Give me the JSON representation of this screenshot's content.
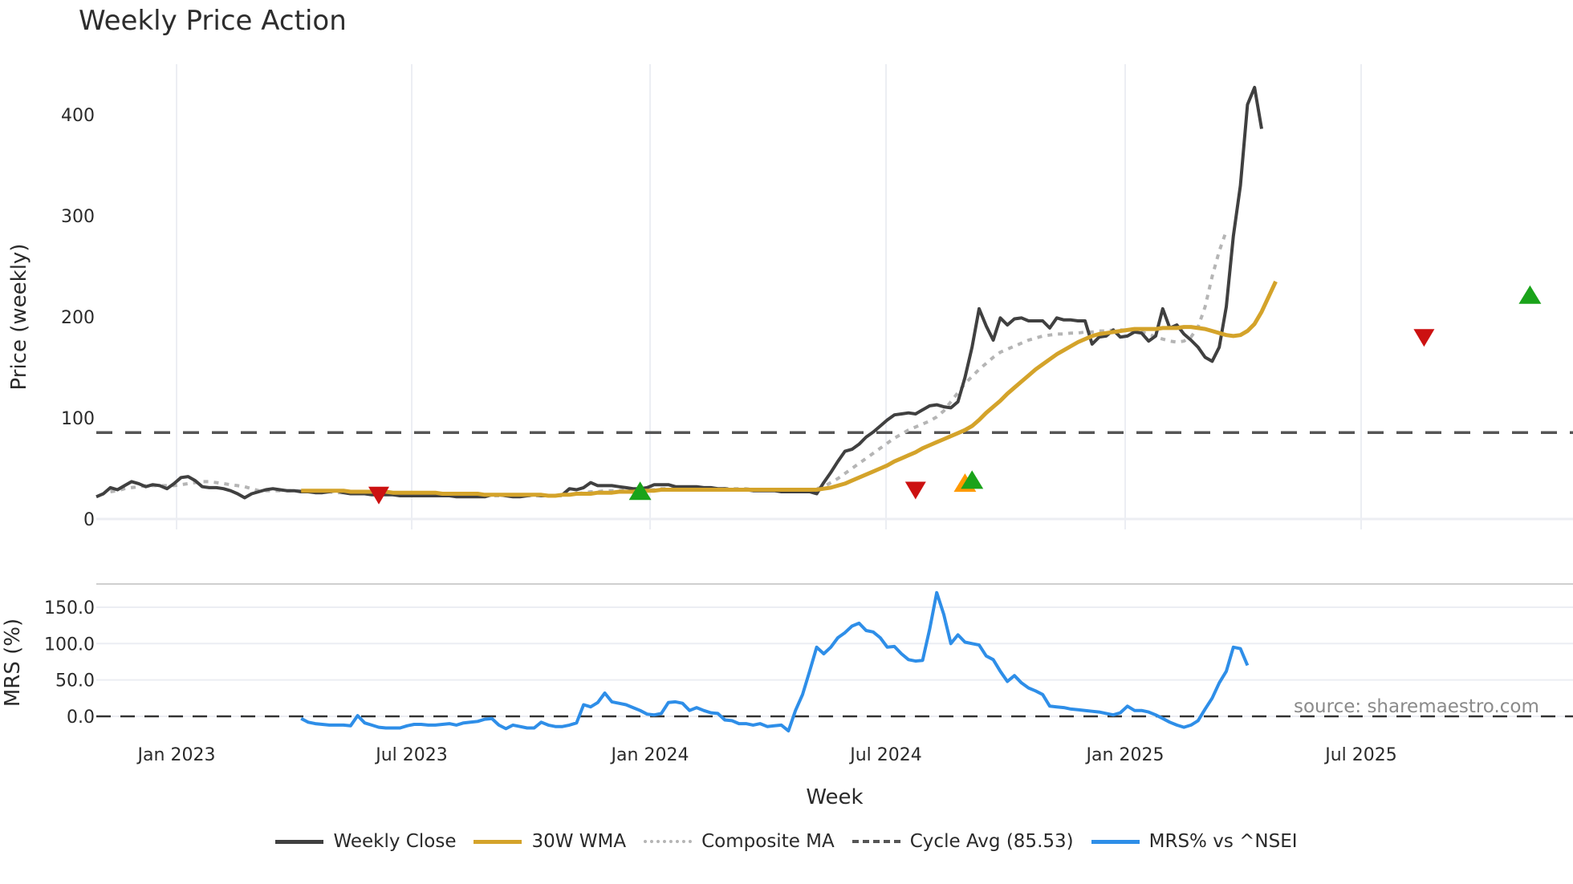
{
  "title": "Weekly Price Action",
  "watermark": "source: sharemaestro.com",
  "colors": {
    "weekly_close": "#404040",
    "wma30": "#d4a32a",
    "composite_ma": "#b5b5b5",
    "cycle_avg": "#555555",
    "mrs": "#2e8ee8",
    "buy_marker": "#1aa31a",
    "sell_marker": "#cc1111",
    "orange_marker": "#ff9900",
    "grid": "#eceef3"
  },
  "legend": [
    {
      "key": "weekly_close",
      "label": "Weekly Close",
      "style": "solid"
    },
    {
      "key": "wma30",
      "label": "30W WMA",
      "style": "solid"
    },
    {
      "key": "composite_ma",
      "label": "Composite MA",
      "style": "dotted"
    },
    {
      "key": "cycle_avg",
      "label": "Cycle Avg (85.53)",
      "style": "dashed"
    },
    {
      "key": "mrs",
      "label": "MRS% vs ^NSEI",
      "style": "solid"
    }
  ],
  "chart_data": [
    {
      "type": "line",
      "title": "Weekly Price Action",
      "xlabel": "Week",
      "ylabel": "Price (weekly)",
      "ylim": [
        0,
        440
      ],
      "yticks": [
        0,
        100,
        200,
        300,
        400
      ],
      "xticks": [
        "Jan 2023",
        "Jul 2023",
        "Jan 2024",
        "Jul 2024",
        "Jan 2025",
        "Jul 2025"
      ],
      "grid": true,
      "x_start": "2022-10-31",
      "x_step_weeks": 1,
      "reference_lines": [
        {
          "name": "Cycle Avg (85.53)",
          "y": 85.53,
          "style": "dashed"
        }
      ],
      "series": [
        {
          "name": "Weekly Close",
          "start_index": 0,
          "values": [
            22,
            25,
            31,
            29,
            33,
            37,
            35,
            32,
            34,
            33,
            30,
            35,
            41,
            42,
            38,
            32,
            31,
            31,
            30,
            28,
            25,
            21,
            25,
            27,
            29,
            30,
            29,
            28,
            28,
            27,
            27,
            26,
            26,
            27,
            28,
            26,
            25,
            25,
            25,
            24,
            24,
            24,
            24,
            23,
            23,
            23,
            23,
            23,
            23,
            23,
            23,
            22,
            22,
            22,
            22,
            22,
            24,
            24,
            23,
            22,
            22,
            23,
            24,
            23,
            23,
            23,
            24,
            30,
            29,
            31,
            36,
            33,
            33,
            33,
            32,
            31,
            30,
            30,
            31,
            34,
            34,
            34,
            32,
            32,
            32,
            32,
            31,
            31,
            30,
            30,
            29,
            29,
            29,
            28,
            28,
            28,
            28,
            27,
            27,
            27,
            27,
            27,
            25,
            36,
            46,
            57,
            67,
            69,
            74,
            81,
            86,
            92,
            98,
            103,
            104,
            105,
            104,
            108,
            112,
            113,
            111,
            110,
            116,
            140,
            170,
            208,
            191,
            177,
            199,
            192,
            198,
            199,
            196,
            196,
            196,
            189,
            199,
            197,
            197,
            196,
            196,
            173,
            180,
            181,
            187,
            180,
            181,
            185,
            184,
            176,
            181,
            208,
            189,
            192,
            183,
            177,
            170,
            160,
            156,
            170,
            210,
            280,
            330,
            410,
            427,
            386
          ]
        },
        {
          "name": "30W WMA",
          "start_index": 29,
          "values": [
            28,
            28,
            28,
            28,
            28,
            28,
            28,
            27,
            27,
            27,
            27,
            27,
            27,
            26,
            26,
            26,
            26,
            26,
            26,
            26,
            25,
            25,
            25,
            25,
            25,
            25,
            24,
            24,
            24,
            24,
            24,
            24,
            24,
            24,
            24,
            23,
            23,
            24,
            24,
            25,
            25,
            25,
            26,
            26,
            26,
            27,
            27,
            27,
            28,
            28,
            28,
            29,
            29,
            29,
            29,
            29,
            29,
            29,
            29,
            29,
            29,
            29,
            29,
            29,
            29,
            29,
            29,
            29,
            29,
            29,
            29,
            29,
            29,
            29,
            30,
            31,
            33,
            35,
            38,
            41,
            44,
            47,
            50,
            53,
            57,
            60,
            63,
            66,
            70,
            73,
            76,
            79,
            82,
            85,
            88,
            92,
            98,
            105,
            111,
            117,
            124,
            130,
            136,
            142,
            148,
            153,
            158,
            163,
            167,
            171,
            175,
            178,
            181,
            183,
            184,
            185,
            186,
            187,
            188,
            188,
            188,
            188,
            189,
            189,
            189,
            190,
            190,
            189,
            188,
            186,
            184,
            182,
            181,
            182,
            186,
            193,
            205,
            220,
            235
          ]
        },
        {
          "name": "Composite MA",
          "start_index": 2,
          "values": [
            27,
            28,
            30,
            31,
            32,
            33,
            33,
            33,
            33,
            33,
            34,
            35,
            36,
            37,
            37,
            36,
            35,
            34,
            33,
            32,
            30,
            28,
            28,
            28,
            28,
            28,
            28,
            28,
            28,
            27,
            27,
            27,
            26,
            26,
            26,
            26,
            25,
            25,
            25,
            25,
            24,
            24,
            24,
            24,
            24,
            24,
            23,
            23,
            23,
            23,
            23,
            23,
            23,
            23,
            23,
            23,
            23,
            23,
            23,
            23,
            23,
            23,
            23,
            23,
            23,
            24,
            25,
            26,
            27,
            27,
            28,
            28,
            28,
            29,
            29,
            29,
            29,
            29,
            30,
            30,
            30,
            30,
            30,
            30,
            30,
            30,
            30,
            30,
            30,
            30,
            30,
            29,
            29,
            29,
            29,
            29,
            29,
            29,
            29,
            29,
            30,
            32,
            36,
            40,
            45,
            50,
            55,
            60,
            65,
            70,
            75,
            80,
            84,
            88,
            91,
            94,
            97,
            101,
            107,
            116,
            125,
            134,
            141,
            148,
            154,
            160,
            165,
            168,
            171,
            174,
            177,
            179,
            181,
            182,
            183,
            183,
            184,
            184,
            185,
            185,
            186,
            186,
            187,
            187,
            187,
            186,
            185,
            183,
            180,
            178,
            176,
            175,
            176,
            180,
            190,
            210,
            240,
            265,
            285
          ]
        }
      ],
      "markers": [
        {
          "type": "sell",
          "shape": "triangle-down",
          "week_index": 40,
          "y": 24
        },
        {
          "type": "buy",
          "shape": "triangle-up",
          "week_index": 77,
          "y": 26
        },
        {
          "type": "sell",
          "shape": "triangle-down",
          "week_index": 116,
          "y": 29
        },
        {
          "type": "entry",
          "shape": "triangle-up",
          "color": "orange",
          "week_index": 123,
          "y": 34
        },
        {
          "type": "buy",
          "shape": "triangle-up",
          "week_index": 124,
          "y": 37
        },
        {
          "type": "sell",
          "shape": "triangle-down",
          "week_index": 188,
          "y": 180
        },
        {
          "type": "buy",
          "shape": "triangle-up",
          "week_index": 203,
          "y": 220
        }
      ]
    },
    {
      "type": "line",
      "title": "",
      "xlabel": "Week",
      "ylabel": "MRS (%)",
      "ylim": [
        -25,
        185
      ],
      "yticks": [
        0.0,
        50.0,
        100.0,
        150.0
      ],
      "ytick_labels": [
        "0.0",
        "50.0",
        "100.0",
        "150.0"
      ],
      "xticks": [
        "Jan 2023",
        "Jul 2023",
        "Jan 2024",
        "Jul 2024",
        "Jan 2025",
        "Jul 2025"
      ],
      "grid": true,
      "reference_lines": [
        {
          "name": "zero",
          "y": 0,
          "style": "dashed"
        }
      ],
      "series": [
        {
          "name": "MRS% vs ^NSEI",
          "start_index": 29,
          "values": [
            -3,
            -8,
            -10,
            -11,
            -12,
            -12,
            -12,
            -13,
            1,
            -9,
            -12,
            -15,
            -16,
            -16,
            -16,
            -13,
            -11,
            -11,
            -12,
            -12,
            -11,
            -10,
            -12,
            -9,
            -8,
            -7,
            -4,
            -3,
            -12,
            -17,
            -12,
            -14,
            -16,
            -16,
            -8,
            -12,
            -14,
            -14,
            -12,
            -9,
            16,
            13,
            19,
            32,
            20,
            18,
            16,
            12,
            8,
            3,
            2,
            4,
            19,
            20,
            18,
            8,
            12,
            8,
            5,
            4,
            -5,
            -6,
            -10,
            -10,
            -12,
            -10,
            -14,
            -13,
            -12,
            -20,
            8,
            30,
            62,
            95,
            86,
            95,
            108,
            115,
            124,
            128,
            118,
            116,
            108,
            95,
            96,
            86,
            78,
            76,
            77,
            120,
            170,
            140,
            100,
            112,
            102,
            100,
            98,
            83,
            78,
            62,
            48,
            56,
            46,
            39,
            35,
            30,
            14,
            13,
            12,
            10,
            9,
            8,
            7,
            6,
            4,
            2,
            5,
            14,
            8,
            8,
            6,
            2,
            -3,
            -8,
            -12,
            -15,
            -12,
            -6,
            10,
            25,
            46,
            62,
            95,
            93,
            70
          ]
        }
      ]
    }
  ]
}
